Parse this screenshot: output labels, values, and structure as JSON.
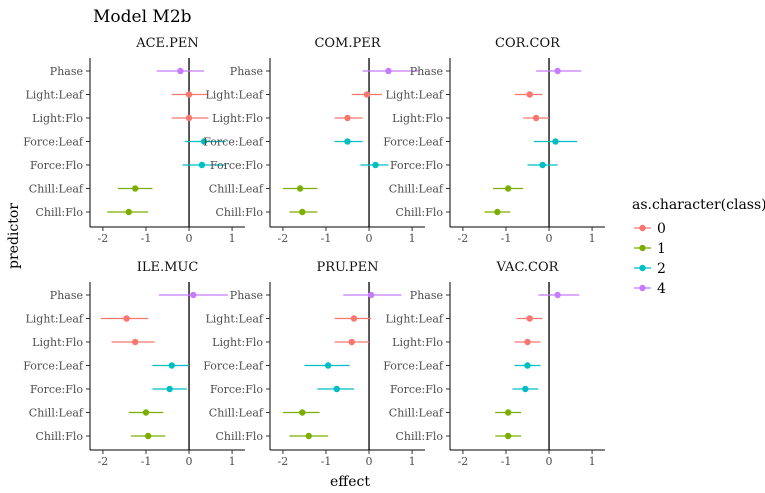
{
  "chart_data": {
    "type": "scatter",
    "title": "Model M2b",
    "xlabel": "effect",
    "ylabel": "predictor",
    "xlim": [
      -2.3,
      1.3
    ],
    "x_ticks": [
      -2,
      -1,
      0,
      1
    ],
    "x_tick_labels": [
      "-2",
      "-1",
      "0",
      "1"
    ],
    "reference_line_x": 0,
    "predictors": [
      "Phase",
      "Light:Leaf",
      "Light:Flo",
      "Force:Leaf",
      "Force:Flo",
      "Chill:Leaf",
      "Chill:Flo"
    ],
    "predictor_class": [
      "4",
      "0",
      "0",
      "2",
      "2",
      "1",
      "1"
    ],
    "grid": false,
    "legend": {
      "title": "as.character(class)",
      "position": "right",
      "entries": [
        {
          "label": "0",
          "color": "#F8766D"
        },
        {
          "label": "1",
          "color": "#7CAE00"
        },
        {
          "label": "2",
          "color": "#00BFC4"
        },
        {
          "label": "4",
          "color": "#C77CFF"
        }
      ]
    },
    "panels": [
      {
        "name": "ACE.PEN",
        "estimates": [
          -0.2,
          0.0,
          0.0,
          0.35,
          0.3,
          -1.25,
          -1.4
        ],
        "lower": [
          -0.75,
          -0.4,
          -0.4,
          -0.1,
          -0.15,
          -1.65,
          -1.9
        ],
        "upper": [
          0.35,
          0.45,
          0.45,
          0.85,
          0.85,
          -0.85,
          -0.95
        ]
      },
      {
        "name": "COM.PER",
        "estimates": [
          0.45,
          -0.05,
          -0.5,
          -0.5,
          0.15,
          -1.6,
          -1.55
        ],
        "lower": [
          -0.15,
          -0.4,
          -0.8,
          -0.8,
          -0.2,
          -2.0,
          -1.85
        ],
        "upper": [
          1.15,
          0.3,
          -0.15,
          -0.15,
          0.45,
          -1.2,
          -1.2
        ]
      },
      {
        "name": "COR.COR",
        "estimates": [
          0.2,
          -0.45,
          -0.3,
          0.15,
          -0.15,
          -0.95,
          -1.2
        ],
        "lower": [
          -0.3,
          -0.8,
          -0.6,
          -0.35,
          -0.5,
          -1.3,
          -1.5
        ],
        "upper": [
          0.75,
          -0.15,
          0.0,
          0.65,
          0.2,
          -0.6,
          -0.9
        ]
      },
      {
        "name": "ILE.MUC",
        "estimates": [
          0.1,
          -1.45,
          -1.25,
          -0.4,
          -0.45,
          -1.0,
          -0.95
        ],
        "lower": [
          -0.7,
          -2.05,
          -1.8,
          -0.85,
          -0.85,
          -1.4,
          -1.35
        ],
        "upper": [
          0.9,
          -0.95,
          -0.8,
          0.0,
          -0.05,
          -0.6,
          -0.55
        ]
      },
      {
        "name": "PRU.PEN",
        "estimates": [
          0.05,
          -0.35,
          -0.4,
          -0.95,
          -0.75,
          -1.55,
          -1.4
        ],
        "lower": [
          -0.6,
          -0.8,
          -0.8,
          -1.5,
          -1.2,
          -2.0,
          -1.85
        ],
        "upper": [
          0.75,
          0.05,
          0.0,
          -0.45,
          -0.35,
          -1.15,
          -0.95
        ]
      },
      {
        "name": "VAC.COR",
        "estimates": [
          0.2,
          -0.45,
          -0.5,
          -0.5,
          -0.55,
          -0.95,
          -0.95
        ],
        "lower": [
          -0.25,
          -0.75,
          -0.8,
          -0.8,
          -0.85,
          -1.25,
          -1.25
        ],
        "upper": [
          0.7,
          -0.15,
          -0.2,
          -0.2,
          -0.25,
          -0.65,
          -0.65
        ]
      }
    ]
  }
}
